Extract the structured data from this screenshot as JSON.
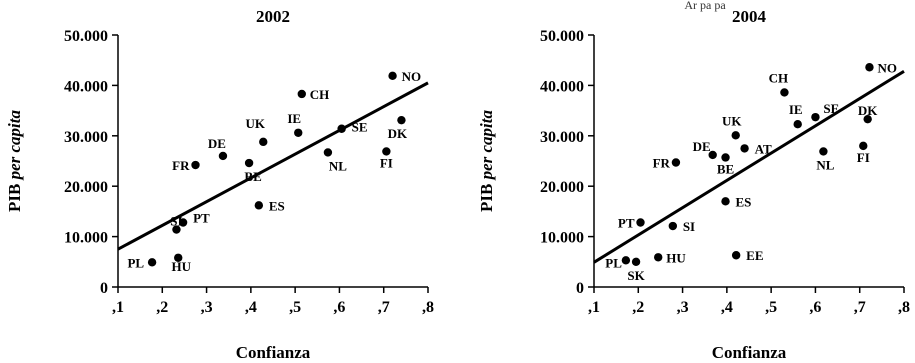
{
  "header_fragment": "Ar    pa   pa",
  "chart_data": [
    {
      "type": "scatter",
      "title": "2002",
      "xlabel": "Confianza",
      "ylabel_main": "PIB ",
      "ylabel_italic": "per capita",
      "xlim": [
        0.1,
        0.8
      ],
      "ylim": [
        0,
        50000
      ],
      "x_ticks": [
        0.1,
        0.2,
        0.3,
        0.4,
        0.5,
        0.6,
        0.7,
        0.8
      ],
      "x_tick_labels": [
        ",1",
        ",2",
        ",3",
        ",4",
        ",5",
        ",6",
        ",7",
        ",8"
      ],
      "y_ticks": [
        0,
        10000,
        20000,
        30000,
        40000,
        50000
      ],
      "y_tick_labels": [
        "0",
        "10.000",
        "20.000",
        "30.000",
        "40.000",
        "50.000"
      ],
      "trendline": [
        [
          0.1,
          7500
        ],
        [
          0.8,
          40500
        ]
      ],
      "points": [
        {
          "label": "PL",
          "x": 0.177,
          "y": 4900
        },
        {
          "label": "HU",
          "x": 0.236,
          "y": 5800
        },
        {
          "label": "SI",
          "x": 0.232,
          "y": 11400
        },
        {
          "label": "PT",
          "x": 0.247,
          "y": 12800
        },
        {
          "label": "FR",
          "x": 0.275,
          "y": 24200
        },
        {
          "label": "DE",
          "x": 0.337,
          "y": 26000
        },
        {
          "label": "BE",
          "x": 0.396,
          "y": 24600
        },
        {
          "label": "UK",
          "x": 0.428,
          "y": 28800
        },
        {
          "label": "ES",
          "x": 0.418,
          "y": 16200
        },
        {
          "label": "IE",
          "x": 0.507,
          "y": 30600
        },
        {
          "label": "CH",
          "x": 0.515,
          "y": 38300
        },
        {
          "label": "SE",
          "x": 0.605,
          "y": 31400
        },
        {
          "label": "NL",
          "x": 0.574,
          "y": 26700
        },
        {
          "label": "FI",
          "x": 0.706,
          "y": 26900
        },
        {
          "label": "NO",
          "x": 0.72,
          "y": 41900
        },
        {
          "label": "DK",
          "x": 0.74,
          "y": 33100
        }
      ]
    },
    {
      "type": "scatter",
      "title": "2004",
      "xlabel": "Confianza",
      "ylabel_main": "PIB ",
      "ylabel_italic": "per capita",
      "xlim": [
        0.1,
        0.8
      ],
      "ylim": [
        0,
        50000
      ],
      "x_ticks": [
        0.1,
        0.2,
        0.3,
        0.4,
        0.5,
        0.6,
        0.7,
        0.8
      ],
      "x_tick_labels": [
        ",1",
        ",2",
        ",3",
        ",4",
        ",5",
        ",6",
        ",7",
        ",8"
      ],
      "y_ticks": [
        0,
        10000,
        20000,
        30000,
        40000,
        50000
      ],
      "y_tick_labels": [
        "0",
        "10.000",
        "20.000",
        "30.000",
        "40.000",
        "50.000"
      ],
      "trendline": [
        [
          0.1,
          4900
        ],
        [
          0.8,
          42800
        ]
      ],
      "points": [
        {
          "label": "PL",
          "x": 0.172,
          "y": 5300
        },
        {
          "label": "SK",
          "x": 0.195,
          "y": 5000
        },
        {
          "label": "HU",
          "x": 0.245,
          "y": 5900
        },
        {
          "label": "PT",
          "x": 0.205,
          "y": 12800
        },
        {
          "label": "SI",
          "x": 0.278,
          "y": 12100
        },
        {
          "label": "FR",
          "x": 0.285,
          "y": 24700
        },
        {
          "label": "DE",
          "x": 0.368,
          "y": 26200
        },
        {
          "label": "BE",
          "x": 0.397,
          "y": 25700
        },
        {
          "label": "UK",
          "x": 0.42,
          "y": 30100
        },
        {
          "label": "AT",
          "x": 0.44,
          "y": 27500
        },
        {
          "label": "ES",
          "x": 0.397,
          "y": 17000
        },
        {
          "label": "EE",
          "x": 0.421,
          "y": 6300
        },
        {
          "label": "CH",
          "x": 0.53,
          "y": 38600
        },
        {
          "label": "IE",
          "x": 0.56,
          "y": 32300
        },
        {
          "label": "SE",
          "x": 0.6,
          "y": 33700
        },
        {
          "label": "NL",
          "x": 0.618,
          "y": 26900
        },
        {
          "label": "FI",
          "x": 0.708,
          "y": 28000
        },
        {
          "label": "DK",
          "x": 0.718,
          "y": 33300
        },
        {
          "label": "NO",
          "x": 0.722,
          "y": 43600
        }
      ]
    }
  ]
}
